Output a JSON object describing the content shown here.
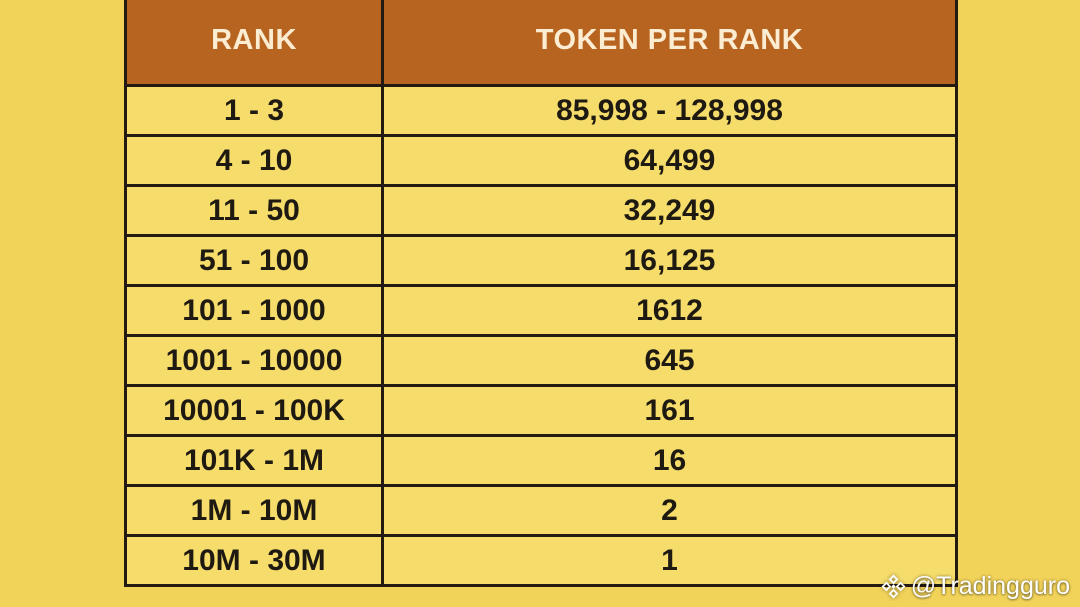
{
  "table": {
    "headers": {
      "rank": "RANK",
      "token": "TOKEN PER RANK"
    },
    "rows": [
      {
        "rank": "1 - 3",
        "token": "85,998 - 128,998"
      },
      {
        "rank": "4 - 10",
        "token": "64,499"
      },
      {
        "rank": "11 - 50",
        "token": "32,249"
      },
      {
        "rank": "51 - 100",
        "token": "16,125"
      },
      {
        "rank": "101 - 1000",
        "token": "1612"
      },
      {
        "rank": "1001 - 10000",
        "token": "645"
      },
      {
        "rank": "10001 - 100K",
        "token": "161"
      },
      {
        "rank": "101K - 1M",
        "token": "16"
      },
      {
        "rank": "1M - 10M",
        "token": "2"
      },
      {
        "rank": "10M - 30M",
        "token": "1"
      }
    ]
  },
  "watermark": {
    "icon": "binance-logo-icon",
    "text": "@Tradingguro"
  },
  "colors": {
    "background": "#f2d35a",
    "header_bg": "#b86421",
    "header_text": "#fbecd2",
    "cell_bg": "#f6dc6a",
    "border": "#231a12"
  }
}
